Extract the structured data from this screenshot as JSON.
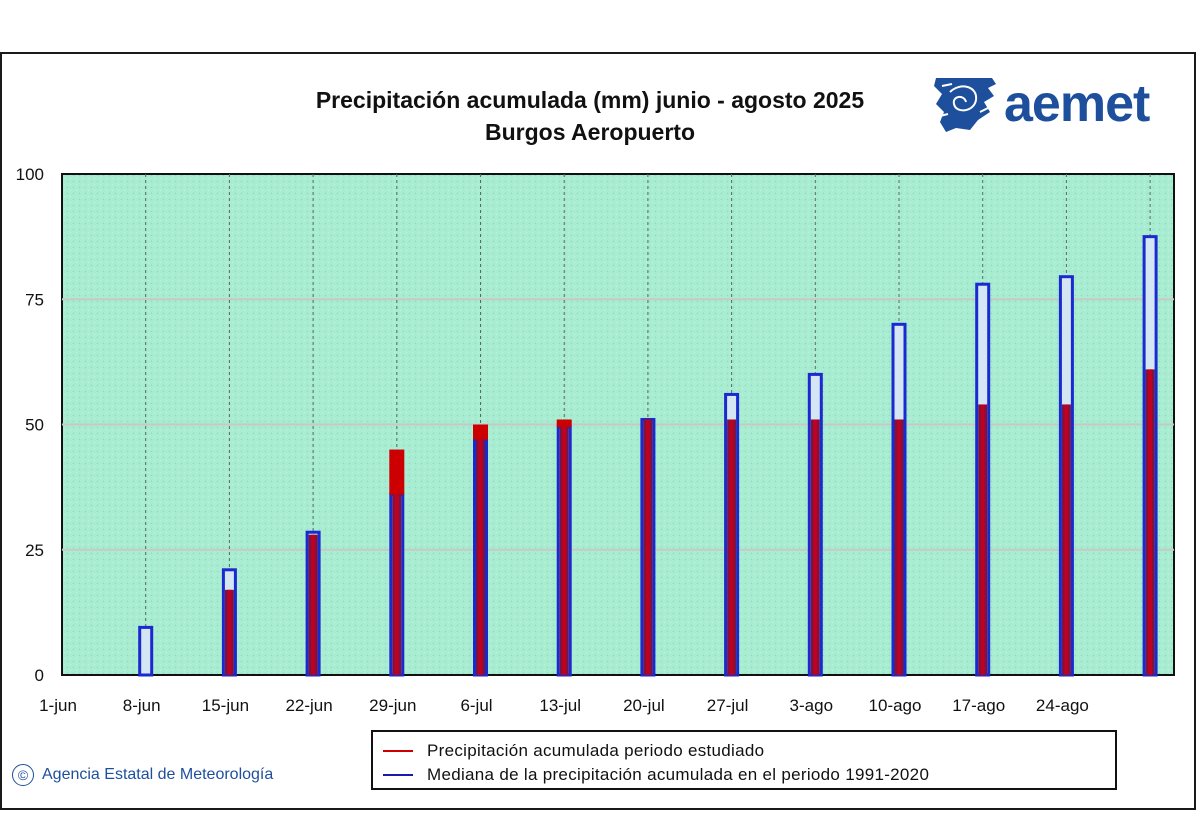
{
  "chart_data": {
    "type": "bar",
    "title": "Precipitación acumulada (mm) junio - agosto 2025",
    "subtitle": "Burgos Aeropuerto",
    "categories": [
      "1-jun",
      "8-jun",
      "15-jun",
      "22-jun",
      "29-jun",
      "6-jul",
      "13-jul",
      "20-jul",
      "27-jul",
      "3-ago",
      "10-ago",
      "17-ago",
      "24-ago",
      ""
    ],
    "series": [
      {
        "name": "Precipitación acumulada periodo estudiado",
        "color": "#e00000",
        "values": [
          0,
          0,
          17,
          28,
          45,
          50,
          51,
          51,
          51,
          51,
          51,
          54,
          54,
          61
        ]
      },
      {
        "name": "Mediana de la precipitación acumulada en el periodo 1991-2020",
        "color": "#1a1aaa",
        "values": [
          0,
          9.5,
          21,
          28.5,
          36,
          47,
          49.5,
          51,
          56,
          60,
          70,
          78,
          79.5,
          87.5
        ]
      }
    ],
    "yticks": [
      0,
      25,
      50,
      75,
      100
    ],
    "ylim": [
      0,
      100
    ],
    "grid": true,
    "legend_position": "bottom"
  },
  "colors": {
    "plot_bg": "#a8ecd2",
    "median_fill": "#d4e6f4",
    "median_border": "#1a2ad0",
    "precip_fill": "#cc0000",
    "overlap_fill": "#7a1440",
    "brand": "#1e4f9c"
  },
  "logo": {
    "text": "aemet"
  },
  "footer": {
    "copyright": "Agencia Estatal de Meteorología",
    "copyright_symbol": "©"
  },
  "legend": {
    "item1": "Precipitación acumulada periodo estudiado",
    "item2": "Mediana de la precipitación acumulada en el periodo 1991-2020"
  }
}
